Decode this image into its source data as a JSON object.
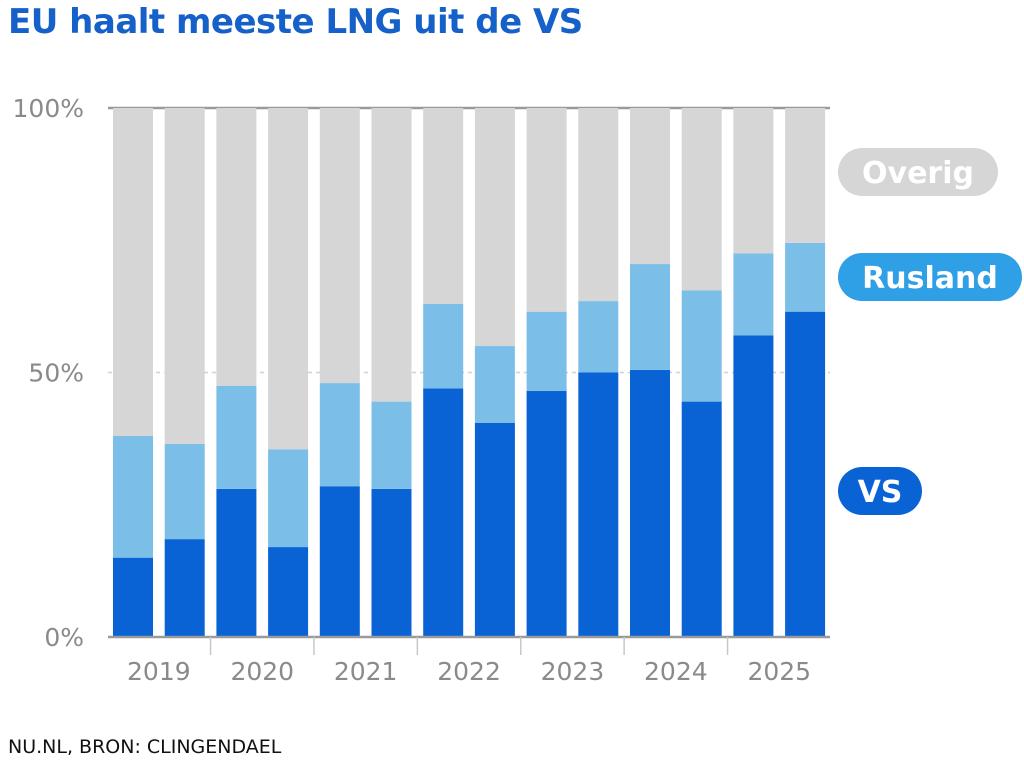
{
  "title": "EU haalt meeste LNG uit de VS",
  "source": "NU.NL, BRON: CLINGENDAEL",
  "chart_data": {
    "type": "bar",
    "stacked": true,
    "categories": [
      "2019 H1",
      "2019 H2",
      "2020 H1",
      "2020 H2",
      "2021 H1",
      "2021 H2",
      "2022 H1",
      "2022 H2",
      "2023 H1",
      "2023 H2",
      "2024 H1",
      "2024 H2",
      "2025 H1",
      "2025 H2"
    ],
    "year_labels": [
      "2019",
      "2020",
      "2021",
      "2022",
      "2023",
      "2024",
      "2025"
    ],
    "series": [
      {
        "name": "VS",
        "color": "#0a63d4",
        "values": [
          15,
          18.5,
          28,
          17,
          28.5,
          28,
          47,
          40.5,
          46.5,
          50,
          50.5,
          44.5,
          57,
          61.5
        ]
      },
      {
        "name": "Rusland",
        "color": "#7bbfe8",
        "values": [
          23,
          18,
          19.5,
          18.5,
          19.5,
          16.5,
          16,
          14.5,
          15,
          13.5,
          20,
          21,
          15.5,
          13
        ]
      },
      {
        "name": "Overig",
        "color": "#d6d6d6",
        "values": [
          62,
          63.5,
          52.5,
          64.5,
          52,
          55.5,
          37,
          45,
          38.5,
          36.5,
          29.5,
          34.5,
          27.5,
          25.5
        ]
      }
    ],
    "y_ticks": [
      "0%",
      "50%",
      "100%"
    ],
    "y_tick_values": [
      0,
      50,
      100
    ],
    "ylim": [
      0,
      100
    ],
    "legend": [
      {
        "label": "Overig",
        "color": "#d6d6d6"
      },
      {
        "label": "Rusland",
        "color": "#2f9fe6"
      },
      {
        "label": "VS",
        "color": "#0a63d4"
      }
    ],
    "legend_position": "right"
  }
}
